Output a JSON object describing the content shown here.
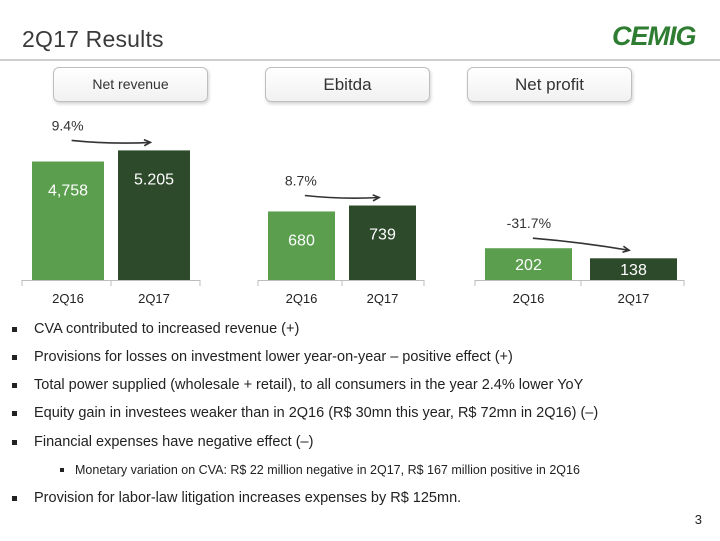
{
  "slide": {
    "title": "2Q17 Results",
    "page_number": "3",
    "logo_text": "CEMIG",
    "brand_color": "#2e7d32"
  },
  "panels": [
    {
      "label": "Net revenue"
    },
    {
      "label": "Ebitda"
    },
    {
      "label": "Net profit"
    }
  ],
  "chart_data": [
    {
      "type": "bar",
      "categories": [
        "2Q16",
        "2Q17"
      ],
      "values": [
        4758,
        5205
      ],
      "value_labels": [
        "4,758",
        "5.205"
      ],
      "change_label": "9.4%",
      "colors": [
        "#5a9e4e",
        "#2d4a2b"
      ]
    },
    {
      "type": "bar",
      "categories": [
        "2Q16",
        "2Q17"
      ],
      "values": [
        680,
        739
      ],
      "value_labels": [
        "680",
        "739"
      ],
      "change_label": "8.7%",
      "colors": [
        "#5a9e4e",
        "#2d4a2b"
      ]
    },
    {
      "type": "bar",
      "categories": [
        "2Q16",
        "2Q17"
      ],
      "values": [
        202,
        138
      ],
      "value_labels": [
        "202",
        "138"
      ],
      "change_label": "-31.7%",
      "colors": [
        "#5a9e4e",
        "#2d4a2b"
      ]
    }
  ],
  "bullets": [
    {
      "text": "CVA contributed to increased revenue (+)",
      "level": 1
    },
    {
      "text": "Provisions for losses on investment lower year-on-year – positive effect (+)",
      "level": 1
    },
    {
      "text": "Total power supplied (wholesale + retail), to all consumers in the year 2.4% lower YoY",
      "level": 1
    },
    {
      "text": "Equity gain in investees weaker than in 2Q16 (R$ 30mn this year, R$ 72mn in 2Q16) (–)",
      "level": 1
    },
    {
      "text": "Financial expenses have negative effect (–)",
      "level": 1
    },
    {
      "text": "Monetary variation on CVA: R$ 22 million negative in 2Q17, R$ 167 million positive in 2Q16",
      "level": 2
    },
    {
      "text": "Provision for labor-law litigation increases expenses by R$ 125mn.",
      "level": 1
    }
  ]
}
